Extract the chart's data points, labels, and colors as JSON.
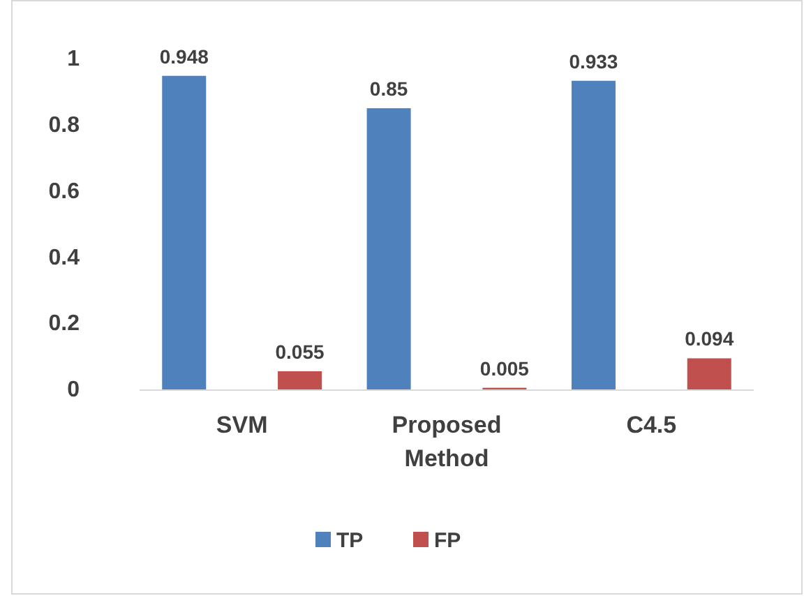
{
  "chart_data": {
    "type": "bar",
    "categories": [
      "SVM",
      "Proposed Method",
      "C4.5"
    ],
    "series": [
      {
        "name": "TP",
        "color": "#4f81bd",
        "values": [
          0.948,
          0.85,
          0.933
        ]
      },
      {
        "name": "FP",
        "color": "#c0504d",
        "values": [
          0.055,
          0.005,
          0.094
        ]
      }
    ],
    "ylim": [
      0,
      1
    ],
    "yticks": [
      {
        "value": 0,
        "label": "0"
      },
      {
        "value": 0.2,
        "label": "0.2"
      },
      {
        "value": 0.4,
        "label": "0.4"
      },
      {
        "value": 0.6,
        "label": "0.6"
      },
      {
        "value": 0.8,
        "label": "0.8"
      },
      {
        "value": 1,
        "label": "1"
      }
    ],
    "grid": false,
    "legend": "bottom",
    "data_labels": true
  }
}
